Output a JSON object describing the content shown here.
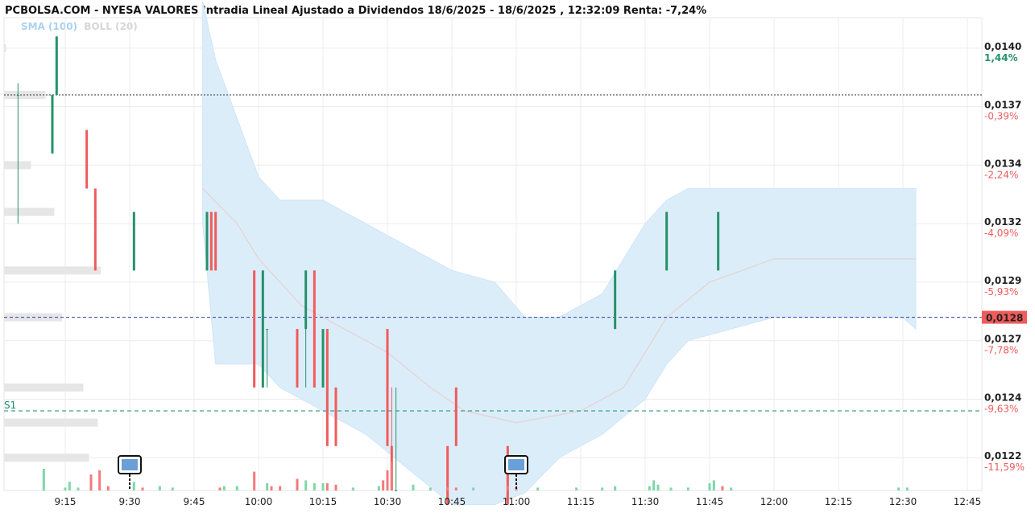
{
  "title": "PCBOLSA.COM - NYESA VALORES Intradia Lineal Ajustado a Dividendos 18/6/2025 - 18/6/2025 , 12:32:09 Renta: -7,24%",
  "indicators": {
    "sma": "SMA (100)",
    "boll": "BOLL (20)"
  },
  "colors": {
    "up": "#26916b",
    "down": "#f05b5b",
    "band": "#dcedfa",
    "sma_line": "#e3d6d6",
    "last_price_line": "#2b3bb0",
    "support_line": "#1a8a6b",
    "last_price_badge": "#f05b5b"
  },
  "icons": [
    "news-icon",
    "news-icon"
  ],
  "chart_data": {
    "type": "candlestick",
    "ylim": [
      0.01211,
      0.01413
    ],
    "x_ticks": [
      "9:15",
      "9:30",
      "9:45",
      "10:00",
      "10:15",
      "10:30",
      "10:45",
      "11:00",
      "11:15",
      "11:30",
      "11:45",
      "12:00",
      "12:15",
      "12:30",
      "12:45"
    ],
    "y_ticks": [
      {
        "value": "0,0140",
        "pct": "1,44%",
        "price": 0.014,
        "dir": "up"
      },
      {
        "value": "0,0137",
        "pct": "-0,39%",
        "price": 0.01375,
        "dir": "down"
      },
      {
        "value": "0,0134",
        "pct": "-2,24%",
        "price": 0.0135,
        "dir": "down"
      },
      {
        "value": "0,0132",
        "pct": "-4,09%",
        "price": 0.01325,
        "dir": "down"
      },
      {
        "value": "0,0129",
        "pct": "-5,93%",
        "price": 0.013,
        "dir": "down"
      },
      {
        "value": "0,0127",
        "pct": "-7,78%",
        "price": 0.01275,
        "dir": "down"
      },
      {
        "value": "0,0124",
        "pct": "-9,63%",
        "price": 0.0125,
        "dir": "down"
      },
      {
        "value": "0,0122",
        "pct": "-11,59%",
        "price": 0.01225,
        "dir": "down"
      }
    ],
    "last_price": {
      "label": "0,0128",
      "value": 0.01285
    },
    "reference_line": 0.014,
    "prev_close_line": 0.0138,
    "support": {
      "label": "S1",
      "value": 0.01245
    },
    "candles": [
      {
        "t": "9:04",
        "o": 0.0138,
        "c": 0.0138,
        "h": 0.01385,
        "l": 0.01325
      },
      {
        "t": "9:12",
        "o": 0.01355,
        "c": 0.0138,
        "h": 0.0138,
        "l": 0.01355
      },
      {
        "t": "9:13",
        "o": 0.0138,
        "c": 0.01405,
        "h": 0.01405,
        "l": 0.0138
      },
      {
        "t": "9:20",
        "o": 0.01365,
        "c": 0.0134,
        "h": 0.01365,
        "l": 0.0134
      },
      {
        "t": "9:22",
        "o": 0.0134,
        "c": 0.01305,
        "h": 0.0134,
        "l": 0.01305
      },
      {
        "t": "9:31",
        "o": 0.01305,
        "c": 0.0133,
        "h": 0.0133,
        "l": 0.01305
      },
      {
        "t": "9:48",
        "o": 0.01305,
        "c": 0.0133,
        "h": 0.0133,
        "l": 0.01305
      },
      {
        "t": "9:49",
        "o": 0.0133,
        "c": 0.01305,
        "h": 0.0133,
        "l": 0.01305
      },
      {
        "t": "9:50",
        "o": 0.0133,
        "c": 0.01305,
        "h": 0.0133,
        "l": 0.01305
      },
      {
        "t": "9:59",
        "o": 0.01305,
        "c": 0.01255,
        "h": 0.01305,
        "l": 0.01255
      },
      {
        "t": "10:01",
        "o": 0.01255,
        "c": 0.01305,
        "h": 0.01305,
        "l": 0.01255
      },
      {
        "t": "10:02",
        "o": 0.0128,
        "c": 0.0128,
        "h": 0.0128,
        "l": 0.01255
      },
      {
        "t": "10:09",
        "o": 0.0128,
        "c": 0.01255,
        "h": 0.0128,
        "l": 0.01255
      },
      {
        "t": "10:11",
        "o": 0.0128,
        "c": 0.01305,
        "h": 0.01305,
        "l": 0.01255
      },
      {
        "t": "10:13",
        "o": 0.01305,
        "c": 0.01255,
        "h": 0.01305,
        "l": 0.01255
      },
      {
        "t": "10:15",
        "o": 0.01255,
        "c": 0.0128,
        "h": 0.0128,
        "l": 0.01255
      },
      {
        "t": "10:16",
        "o": 0.0128,
        "c": 0.0123,
        "h": 0.0128,
        "l": 0.0123
      },
      {
        "t": "10:18",
        "o": 0.01255,
        "c": 0.0123,
        "h": 0.01255,
        "l": 0.0123
      },
      {
        "t": "10:30",
        "o": 0.0128,
        "c": 0.0123,
        "h": 0.0128,
        "l": 0.0123
      },
      {
        "t": "10:31",
        "o": 0.0123,
        "c": 0.01211,
        "h": 0.01255,
        "l": 0.01211
      },
      {
        "t": "10:32",
        "o": 0.01211,
        "c": 0.01211,
        "h": 0.01255,
        "l": 0.01211
      },
      {
        "t": "10:44",
        "o": 0.0123,
        "c": 0.01205,
        "h": 0.0123,
        "l": 0.01205
      },
      {
        "t": "10:46",
        "o": 0.01255,
        "c": 0.0123,
        "h": 0.01255,
        "l": 0.0123
      },
      {
        "t": "10:58",
        "o": 0.0123,
        "c": 0.01205,
        "h": 0.0123,
        "l": 0.01205
      },
      {
        "t": "11:23",
        "o": 0.0128,
        "c": 0.01305,
        "h": 0.01305,
        "l": 0.0128
      },
      {
        "t": "11:35",
        "o": 0.01305,
        "c": 0.0133,
        "h": 0.0133,
        "l": 0.01305
      },
      {
        "t": "11:47",
        "o": 0.01305,
        "c": 0.0133,
        "h": 0.0133,
        "l": 0.01305
      }
    ],
    "bollinger": {
      "t": [
        "9:47",
        "9:50",
        "10:00",
        "10:05",
        "10:15",
        "10:25",
        "10:35",
        "10:45",
        "10:55",
        "11:02",
        "11:10",
        "11:20",
        "11:30",
        "11:35",
        "11:40",
        "11:50",
        "12:00",
        "12:15",
        "12:30",
        "12:33"
      ],
      "upper": [
        0.0142,
        0.01395,
        0.01345,
        0.01335,
        0.01335,
        0.01325,
        0.01315,
        0.01305,
        0.013,
        0.01285,
        0.01285,
        0.01295,
        0.01325,
        0.01335,
        0.0134,
        0.0134,
        0.0134,
        0.0134,
        0.0134,
        0.0134
      ],
      "lower": [
        0.01325,
        0.01265,
        0.01265,
        0.01255,
        0.01245,
        0.01235,
        0.0122,
        0.01205,
        0.01205,
        0.0121,
        0.01225,
        0.01235,
        0.0125,
        0.01265,
        0.01275,
        0.0128,
        0.01285,
        0.01285,
        0.01285,
        0.0128
      ]
    },
    "sma": {
      "t": [
        "9:47",
        "9:55",
        "10:00",
        "10:10",
        "10:20",
        "10:30",
        "10:40",
        "10:48",
        "11:00",
        "11:15",
        "11:25",
        "11:35",
        "11:45",
        "12:00",
        "12:15",
        "12:30",
        "12:33"
      ],
      "v": [
        0.0134,
        0.01325,
        0.0131,
        0.0129,
        0.0128,
        0.0127,
        0.01255,
        0.01245,
        0.0124,
        0.01245,
        0.01255,
        0.01285,
        0.013,
        0.0131,
        0.0131,
        0.0131,
        0.0131
      ]
    },
    "volume": [
      {
        "t": "9:10",
        "v": 30,
        "dir": "up"
      },
      {
        "t": "9:15",
        "v": 4,
        "dir": "up"
      },
      {
        "t": "9:16",
        "v": 12,
        "dir": "up"
      },
      {
        "t": "9:18",
        "v": 4,
        "dir": "up"
      },
      {
        "t": "9:21",
        "v": 22,
        "dir": "down"
      },
      {
        "t": "9:23",
        "v": 28,
        "dir": "down"
      },
      {
        "t": "9:25",
        "v": 6,
        "dir": "down"
      },
      {
        "t": "9:31",
        "v": 12,
        "dir": "up"
      },
      {
        "t": "9:33",
        "v": 4,
        "dir": "down"
      },
      {
        "t": "9:37",
        "v": 6,
        "dir": "up"
      },
      {
        "t": "9:40",
        "v": 4,
        "dir": "up"
      },
      {
        "t": "9:51",
        "v": 4,
        "dir": "down"
      },
      {
        "t": "9:52",
        "v": 6,
        "dir": "up"
      },
      {
        "t": "9:55",
        "v": 6,
        "dir": "up"
      },
      {
        "t": "9:59",
        "v": 26,
        "dir": "down"
      },
      {
        "t": "10:02",
        "v": 10,
        "dir": "up"
      },
      {
        "t": "10:03",
        "v": 6,
        "dir": "down"
      },
      {
        "t": "10:05",
        "v": 6,
        "dir": "down"
      },
      {
        "t": "10:09",
        "v": 16,
        "dir": "down"
      },
      {
        "t": "10:11",
        "v": 14,
        "dir": "up"
      },
      {
        "t": "10:13",
        "v": 10,
        "dir": "up"
      },
      {
        "t": "10:15",
        "v": 10,
        "dir": "up"
      },
      {
        "t": "10:16",
        "v": 10,
        "dir": "down"
      },
      {
        "t": "10:18",
        "v": 8,
        "dir": "down"
      },
      {
        "t": "10:22",
        "v": 4,
        "dir": "up"
      },
      {
        "t": "10:28",
        "v": 6,
        "dir": "up"
      },
      {
        "t": "10:29",
        "v": 14,
        "dir": "down"
      },
      {
        "t": "10:30",
        "v": 28,
        "dir": "down"
      },
      {
        "t": "10:31",
        "v": 40,
        "dir": "down"
      },
      {
        "t": "10:36",
        "v": 8,
        "dir": "up"
      },
      {
        "t": "10:40",
        "v": 4,
        "dir": "up"
      },
      {
        "t": "10:44",
        "v": 4,
        "dir": "down"
      },
      {
        "t": "10:46",
        "v": 4,
        "dir": "down"
      },
      {
        "t": "10:50",
        "v": 4,
        "dir": "up"
      },
      {
        "t": "10:58",
        "v": 6,
        "dir": "down"
      },
      {
        "t": "11:00",
        "v": 4,
        "dir": "down"
      },
      {
        "t": "11:05",
        "v": 4,
        "dir": "up"
      },
      {
        "t": "11:14",
        "v": 4,
        "dir": "up"
      },
      {
        "t": "11:20",
        "v": 4,
        "dir": "up"
      },
      {
        "t": "11:23",
        "v": 6,
        "dir": "up"
      },
      {
        "t": "11:31",
        "v": 6,
        "dir": "up"
      },
      {
        "t": "11:32",
        "v": 14,
        "dir": "up"
      },
      {
        "t": "11:33",
        "v": 8,
        "dir": "up"
      },
      {
        "t": "11:36",
        "v": 4,
        "dir": "up"
      },
      {
        "t": "11:40",
        "v": 4,
        "dir": "up"
      },
      {
        "t": "11:45",
        "v": 10,
        "dir": "up"
      },
      {
        "t": "11:46",
        "v": 14,
        "dir": "up"
      },
      {
        "t": "11:48",
        "v": 6,
        "dir": "down"
      },
      {
        "t": "11:50",
        "v": 4,
        "dir": "up"
      },
      {
        "t": "12:29",
        "v": 4,
        "dir": "up"
      },
      {
        "t": "12:31",
        "v": 4,
        "dir": "up"
      }
    ],
    "volume_profile": [
      {
        "price": 0.014,
        "w": 0.02
      },
      {
        "price": 0.0138,
        "w": 0.43
      },
      {
        "price": 0.0135,
        "w": 0.28
      },
      {
        "price": 0.0133,
        "w": 0.52
      },
      {
        "price": 0.01305,
        "w": 1.0
      },
      {
        "price": 0.01285,
        "w": 0.6
      },
      {
        "price": 0.01255,
        "w": 0.82
      },
      {
        "price": 0.0124,
        "w": 0.97
      },
      {
        "price": 0.01225,
        "w": 0.88
      }
    ]
  }
}
